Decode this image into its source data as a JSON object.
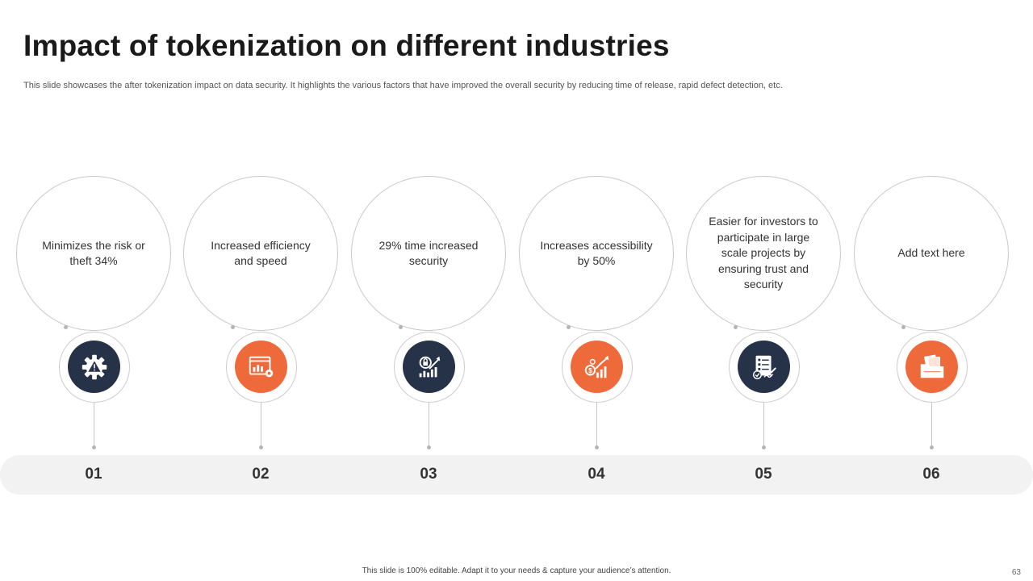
{
  "slide": {
    "title": "Impact of tokenization on different industries",
    "subtitle": "This slide showcases the after tokenization impact on data security. It highlights the various factors that have improved the overall security by reducing time of release, rapid defect detection, etc."
  },
  "colors": {
    "dark": "#263247",
    "orange": "#ef6a3a",
    "bar": "#f2f2f2"
  },
  "steps": [
    {
      "number": "01",
      "text": "Minimizes the risk or theft 34%",
      "icon": "gear-warning-icon",
      "icon_color": "dark"
    },
    {
      "number": "02",
      "text": "Increased efficiency and speed",
      "icon": "browser-chart-gear-icon",
      "icon_color": "orange"
    },
    {
      "number": "03",
      "text": "29% time increased security",
      "icon": "lock-growth-chart-icon",
      "icon_color": "dark"
    },
    {
      "number": "04",
      "text": "Increases accessibility by 50%",
      "icon": "money-growth-icon",
      "icon_color": "orange"
    },
    {
      "number": "05",
      "text": "Easier for investors to participate in large scale projects by ensuring trust and security",
      "icon": "checklist-signature-icon",
      "icon_color": "dark"
    },
    {
      "number": "06",
      "text": "Add text here",
      "icon": "folder-documents-icon",
      "icon_color": "orange"
    }
  ],
  "footer": {
    "note": "This slide is 100% editable. Adapt it to your needs & capture your audience’s attention.",
    "page_number": "63"
  }
}
